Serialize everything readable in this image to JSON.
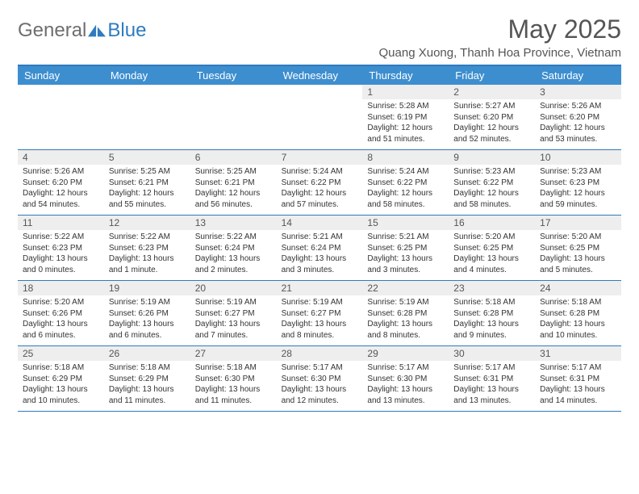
{
  "brand": {
    "part1": "General",
    "part2": "Blue"
  },
  "title": "May 2025",
  "location": "Quang Xuong, Thanh Hoa Province, Vietnam",
  "colors": {
    "header_bg": "#3d8ecf",
    "header_border": "#2f7bbf",
    "daynum_bg": "#eeeeee",
    "text": "#333333",
    "title_text": "#555555"
  },
  "dow": [
    "Sunday",
    "Monday",
    "Tuesday",
    "Wednesday",
    "Thursday",
    "Friday",
    "Saturday"
  ],
  "weeks": [
    [
      null,
      null,
      null,
      null,
      {
        "d": "1",
        "sr": "5:28 AM",
        "ss": "6:19 PM",
        "dl": "12 hours and 51 minutes."
      },
      {
        "d": "2",
        "sr": "5:27 AM",
        "ss": "6:20 PM",
        "dl": "12 hours and 52 minutes."
      },
      {
        "d": "3",
        "sr": "5:26 AM",
        "ss": "6:20 PM",
        "dl": "12 hours and 53 minutes."
      }
    ],
    [
      {
        "d": "4",
        "sr": "5:26 AM",
        "ss": "6:20 PM",
        "dl": "12 hours and 54 minutes."
      },
      {
        "d": "5",
        "sr": "5:25 AM",
        "ss": "6:21 PM",
        "dl": "12 hours and 55 minutes."
      },
      {
        "d": "6",
        "sr": "5:25 AM",
        "ss": "6:21 PM",
        "dl": "12 hours and 56 minutes."
      },
      {
        "d": "7",
        "sr": "5:24 AM",
        "ss": "6:22 PM",
        "dl": "12 hours and 57 minutes."
      },
      {
        "d": "8",
        "sr": "5:24 AM",
        "ss": "6:22 PM",
        "dl": "12 hours and 58 minutes."
      },
      {
        "d": "9",
        "sr": "5:23 AM",
        "ss": "6:22 PM",
        "dl": "12 hours and 58 minutes."
      },
      {
        "d": "10",
        "sr": "5:23 AM",
        "ss": "6:23 PM",
        "dl": "12 hours and 59 minutes."
      }
    ],
    [
      {
        "d": "11",
        "sr": "5:22 AM",
        "ss": "6:23 PM",
        "dl": "13 hours and 0 minutes."
      },
      {
        "d": "12",
        "sr": "5:22 AM",
        "ss": "6:23 PM",
        "dl": "13 hours and 1 minute."
      },
      {
        "d": "13",
        "sr": "5:22 AM",
        "ss": "6:24 PM",
        "dl": "13 hours and 2 minutes."
      },
      {
        "d": "14",
        "sr": "5:21 AM",
        "ss": "6:24 PM",
        "dl": "13 hours and 3 minutes."
      },
      {
        "d": "15",
        "sr": "5:21 AM",
        "ss": "6:25 PM",
        "dl": "13 hours and 3 minutes."
      },
      {
        "d": "16",
        "sr": "5:20 AM",
        "ss": "6:25 PM",
        "dl": "13 hours and 4 minutes."
      },
      {
        "d": "17",
        "sr": "5:20 AM",
        "ss": "6:25 PM",
        "dl": "13 hours and 5 minutes."
      }
    ],
    [
      {
        "d": "18",
        "sr": "5:20 AM",
        "ss": "6:26 PM",
        "dl": "13 hours and 6 minutes."
      },
      {
        "d": "19",
        "sr": "5:19 AM",
        "ss": "6:26 PM",
        "dl": "13 hours and 6 minutes."
      },
      {
        "d": "20",
        "sr": "5:19 AM",
        "ss": "6:27 PM",
        "dl": "13 hours and 7 minutes."
      },
      {
        "d": "21",
        "sr": "5:19 AM",
        "ss": "6:27 PM",
        "dl": "13 hours and 8 minutes."
      },
      {
        "d": "22",
        "sr": "5:19 AM",
        "ss": "6:28 PM",
        "dl": "13 hours and 8 minutes."
      },
      {
        "d": "23",
        "sr": "5:18 AM",
        "ss": "6:28 PM",
        "dl": "13 hours and 9 minutes."
      },
      {
        "d": "24",
        "sr": "5:18 AM",
        "ss": "6:28 PM",
        "dl": "13 hours and 10 minutes."
      }
    ],
    [
      {
        "d": "25",
        "sr": "5:18 AM",
        "ss": "6:29 PM",
        "dl": "13 hours and 10 minutes."
      },
      {
        "d": "26",
        "sr": "5:18 AM",
        "ss": "6:29 PM",
        "dl": "13 hours and 11 minutes."
      },
      {
        "d": "27",
        "sr": "5:18 AM",
        "ss": "6:30 PM",
        "dl": "13 hours and 11 minutes."
      },
      {
        "d": "28",
        "sr": "5:17 AM",
        "ss": "6:30 PM",
        "dl": "13 hours and 12 minutes."
      },
      {
        "d": "29",
        "sr": "5:17 AM",
        "ss": "6:30 PM",
        "dl": "13 hours and 13 minutes."
      },
      {
        "d": "30",
        "sr": "5:17 AM",
        "ss": "6:31 PM",
        "dl": "13 hours and 13 minutes."
      },
      {
        "d": "31",
        "sr": "5:17 AM",
        "ss": "6:31 PM",
        "dl": "13 hours and 14 minutes."
      }
    ]
  ],
  "labels": {
    "sunrise": "Sunrise: ",
    "sunset": "Sunset: ",
    "daylight": "Daylight: "
  }
}
